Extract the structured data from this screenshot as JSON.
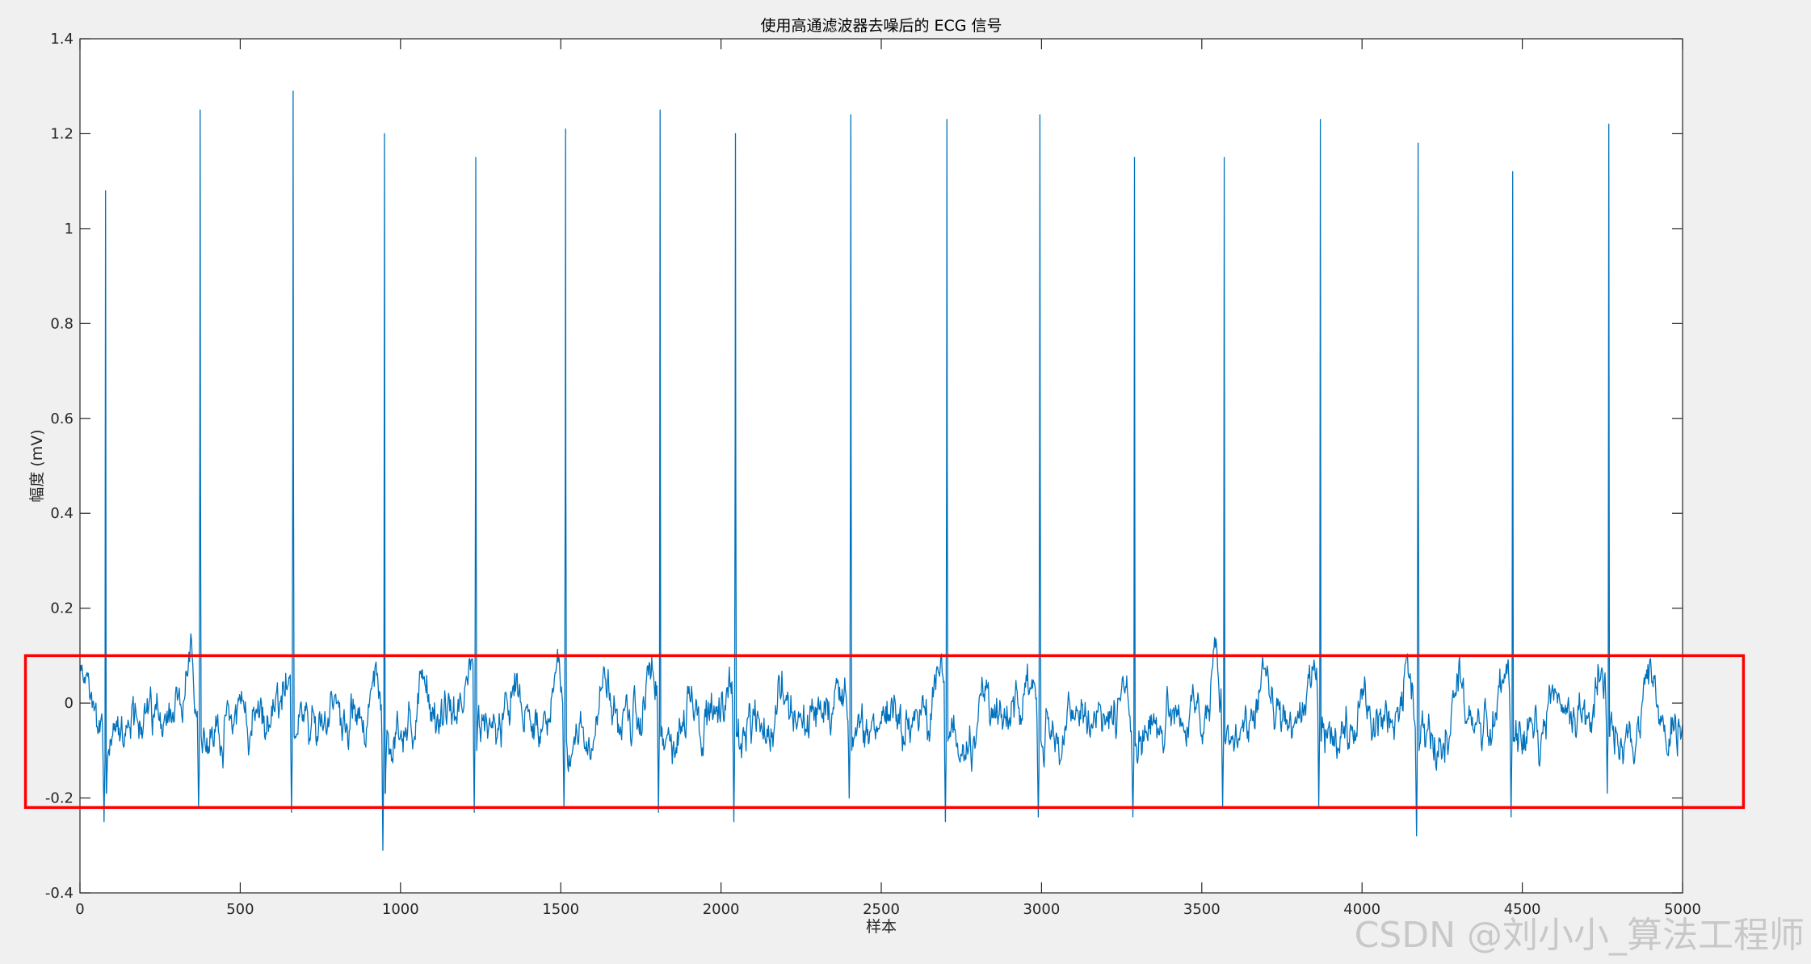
{
  "chart_data": {
    "type": "line",
    "title": "使用高通滤波器去噪后的 ECG 信号",
    "xlabel": "样本",
    "ylabel": "幅度 (mV)",
    "xlim": [
      0,
      5000
    ],
    "ylim": [
      -0.4,
      1.4
    ],
    "x_ticks": [
      0,
      500,
      1000,
      1500,
      2000,
      2500,
      3000,
      3500,
      4000,
      4500,
      5000
    ],
    "y_ticks": [
      -0.4,
      -0.2,
      0,
      0.2,
      0.4,
      0.6,
      0.8,
      1.0,
      1.2,
      1.4
    ],
    "x_tick_labels": [
      "0",
      "500",
      "1000",
      "1500",
      "2000",
      "2500",
      "3000",
      "3500",
      "4000",
      "4500",
      "5000"
    ],
    "y_tick_labels": [
      "-0.4",
      "-0.2",
      "0",
      "0.2",
      "0.4",
      "0.6",
      "0.8",
      "1",
      "1.2",
      "1.4"
    ],
    "grid": false,
    "series": [
      {
        "color": "#0072BD",
        "sample_count": 5000,
        "baseline_range": [
          -0.1,
          0.12
        ],
        "r_peaks": [
          {
            "x": 80,
            "y": 1.08,
            "q": -0.25,
            "s": -0.19
          },
          {
            "x": 375,
            "y": 1.25,
            "q": -0.22,
            "s": -0.07
          },
          {
            "x": 665,
            "y": 1.29,
            "q": -0.23,
            "s": -0.07
          },
          {
            "x": 950,
            "y": 1.2,
            "q": -0.31,
            "s": -0.19
          },
          {
            "x": 1235,
            "y": 1.15,
            "q": -0.23,
            "s": -0.1
          },
          {
            "x": 1515,
            "y": 1.21,
            "q": -0.22,
            "s": -0.08
          },
          {
            "x": 1810,
            "y": 1.25,
            "q": -0.23,
            "s": -0.07
          },
          {
            "x": 2045,
            "y": 1.2,
            "q": -0.25,
            "s": -0.07
          },
          {
            "x": 2405,
            "y": 1.24,
            "q": -0.2,
            "s": -0.1
          },
          {
            "x": 2705,
            "y": 1.23,
            "q": -0.25,
            "s": -0.08
          },
          {
            "x": 2995,
            "y": 1.24,
            "q": -0.24,
            "s": -0.08
          },
          {
            "x": 3290,
            "y": 1.15,
            "q": -0.24,
            "s": -0.09
          },
          {
            "x": 3570,
            "y": 1.15,
            "q": -0.22,
            "s": -0.08
          },
          {
            "x": 3870,
            "y": 1.23,
            "q": -0.22,
            "s": -0.08
          },
          {
            "x": 4175,
            "y": 1.18,
            "q": -0.28,
            "s": -0.1
          },
          {
            "x": 4470,
            "y": 1.12,
            "q": -0.24,
            "s": -0.08
          },
          {
            "x": 4770,
            "y": 1.22,
            "q": -0.19,
            "s": -0.07
          }
        ]
      }
    ],
    "annotations": [
      {
        "type": "rectangle",
        "color": "#ff0000",
        "x_range": [
          -170,
          5190
        ],
        "y_range": [
          -0.22,
          0.1
        ]
      }
    ]
  },
  "watermark": "CSDN @刘小小_算法工程师"
}
